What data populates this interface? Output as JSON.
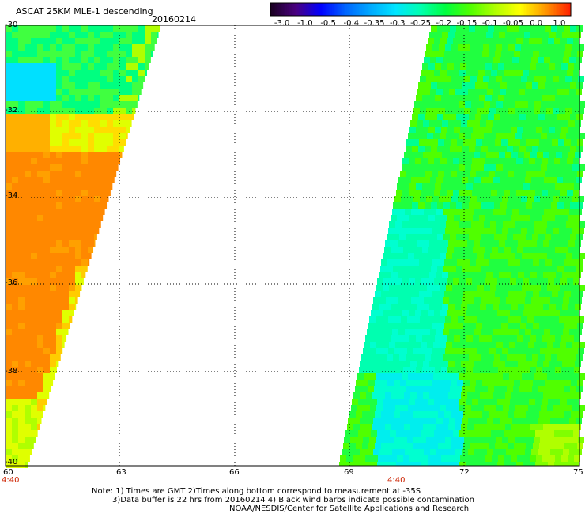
{
  "header": {
    "title": "ASCAT 25KM MLE-1 descending",
    "date": "20160214"
  },
  "colorbar": {
    "labels": [
      "-3.0",
      "-1.0",
      "-0.5",
      "-0.4",
      "-0.35",
      "-0.3",
      "-0.25",
      "-0.2",
      "-0.15",
      "-0.1",
      "-0.05",
      "0.0",
      "1.0"
    ],
    "colors": [
      "#1a0022",
      "#4a0080",
      "#0000ff",
      "#0066ff",
      "#00aaff",
      "#00e5ff",
      "#00ffb0",
      "#00ff40",
      "#50ff00",
      "#b0ff00",
      "#ffff00",
      "#ff9900",
      "#ff2200"
    ]
  },
  "axes": {
    "lat_labels": [
      "-30",
      "-32",
      "-34",
      "-36",
      "-38",
      "-40"
    ],
    "lon_labels": [
      "60",
      "63",
      "66",
      "69",
      "72",
      "75"
    ],
    "lat_range": [
      -30,
      -40
    ],
    "lon_range": [
      60,
      75
    ]
  },
  "passes": [
    {
      "time": "4:40"
    },
    {
      "time": "4:40"
    }
  ],
  "notes": [
    "Note: 1) Times are GMT 2)Times along bottom correspond to measurement at -35S",
    "3)Data buffer is 22 hrs from 20160214 4) Black wind barbs indicate possible contamination",
    "NOAA/NESDIS/Center for Satellite Applications and Research"
  ]
}
